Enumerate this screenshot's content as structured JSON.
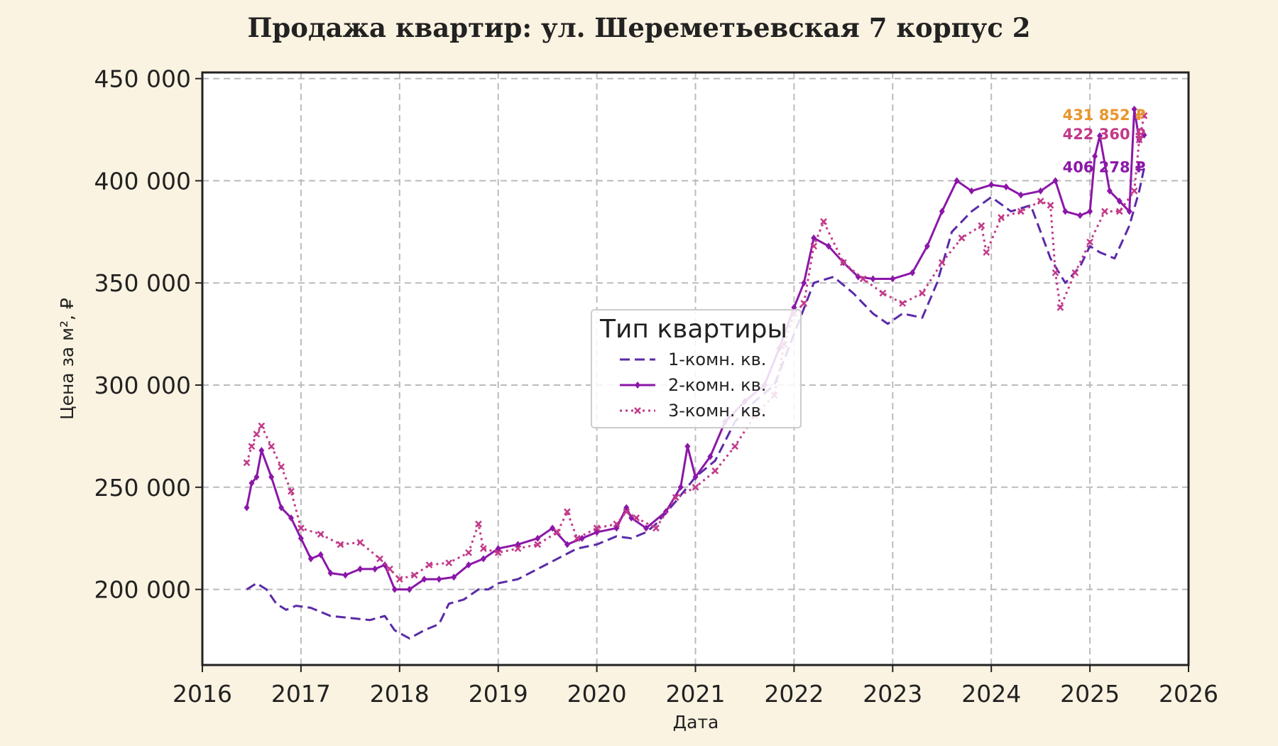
{
  "chart_data": {
    "type": "line",
    "title": "Продажа квартир: ул. Шереметьевская 7 корпус 2",
    "xlabel": "Дата",
    "ylabel": "Цена за м², ₽",
    "xlim": [
      2016,
      2026
    ],
    "ylim": [
      163000,
      453000
    ],
    "x_ticks": [
      "2016",
      "2017",
      "2018",
      "2019",
      "2020",
      "2021",
      "2022",
      "2023",
      "2024",
      "2025",
      "2026"
    ],
    "y_ticks": [
      "200 000",
      "250 000",
      "300 000",
      "350 000",
      "400 000",
      "450 000"
    ],
    "grid": true,
    "legend": {
      "title": "Тип квартиры",
      "placement": "center"
    },
    "series": [
      {
        "name": "1-комн. кв.",
        "color": "#5b2aa8",
        "style": "dashed",
        "x": [
          2016.45,
          2016.55,
          2016.65,
          2016.75,
          2016.85,
          2016.95,
          2017.1,
          2017.3,
          2017.5,
          2017.7,
          2017.85,
          2017.95,
          2018.1,
          2018.25,
          2018.4,
          2018.5,
          2018.65,
          2018.8,
          2018.9,
          2019.0,
          2019.2,
          2019.4,
          2019.6,
          2019.8,
          2020.0,
          2020.2,
          2020.35,
          2020.5,
          2020.6,
          2020.8,
          2021.0,
          2021.2,
          2021.4,
          2021.6,
          2021.8,
          2022.0,
          2022.2,
          2022.4,
          2022.6,
          2022.8,
          2022.95,
          2023.1,
          2023.3,
          2023.45,
          2023.6,
          2023.8,
          2024.0,
          2024.2,
          2024.4,
          2024.6,
          2024.75,
          2024.9,
          2025.0,
          2025.1,
          2025.25,
          2025.4,
          2025.5,
          2025.55
        ],
        "y": [
          200000,
          203000,
          200000,
          193000,
          190000,
          192000,
          191000,
          187000,
          186000,
          185000,
          187000,
          180000,
          176000,
          180000,
          183000,
          193000,
          195000,
          200000,
          200000,
          203000,
          205000,
          210000,
          215000,
          220000,
          222000,
          226000,
          225000,
          228000,
          232000,
          243000,
          255000,
          263000,
          282000,
          292000,
          300000,
          325000,
          350000,
          353000,
          345000,
          335000,
          330000,
          335000,
          333000,
          350000,
          375000,
          385000,
          392000,
          385000,
          388000,
          362000,
          350000,
          358000,
          368000,
          365000,
          362000,
          378000,
          395000,
          406278
        ]
      },
      {
        "name": "2-комн. кв.",
        "color": "#8b17a8",
        "style": "solid",
        "marker": "diamond",
        "x": [
          2016.45,
          2016.5,
          2016.55,
          2016.6,
          2016.7,
          2016.8,
          2016.9,
          2017.0,
          2017.1,
          2017.2,
          2017.3,
          2017.45,
          2017.6,
          2017.75,
          2017.85,
          2017.95,
          2018.1,
          2018.25,
          2018.4,
          2018.55,
          2018.7,
          2018.85,
          2019.0,
          2019.2,
          2019.4,
          2019.55,
          2019.7,
          2019.85,
          2020.0,
          2020.2,
          2020.3,
          2020.35,
          2020.5,
          2020.7,
          2020.85,
          2020.92,
          2021.0,
          2021.15,
          2021.3,
          2021.5,
          2021.7,
          2021.85,
          2022.0,
          2022.1,
          2022.2,
          2022.35,
          2022.5,
          2022.65,
          2022.8,
          2023.0,
          2023.2,
          2023.35,
          2023.5,
          2023.65,
          2023.8,
          2024.0,
          2024.15,
          2024.3,
          2024.5,
          2024.65,
          2024.75,
          2024.9,
          2025.0,
          2025.05,
          2025.1,
          2025.2,
          2025.3,
          2025.4,
          2025.45,
          2025.5,
          2025.55
        ],
        "y": [
          240000,
          252000,
          255000,
          268000,
          255000,
          240000,
          235000,
          225000,
          215000,
          217000,
          208000,
          207000,
          210000,
          210000,
          212000,
          200000,
          200000,
          205000,
          205000,
          206000,
          212000,
          215000,
          220000,
          222000,
          225000,
          230000,
          222000,
          225000,
          228000,
          230000,
          240000,
          235000,
          230000,
          238000,
          250000,
          270000,
          255000,
          265000,
          282000,
          292000,
          300000,
          318000,
          338000,
          350000,
          372000,
          368000,
          360000,
          353000,
          352000,
          352000,
          355000,
          368000,
          385000,
          400000,
          395000,
          398000,
          397000,
          393000,
          395000,
          400000,
          385000,
          383000,
          385000,
          412000,
          422000,
          395000,
          390000,
          385000,
          435000,
          420000,
          422360
        ]
      },
      {
        "name": "3-комн. кв.",
        "color": "#c23a8a",
        "style": "dotted",
        "marker": "x",
        "x": [
          2016.45,
          2016.5,
          2016.55,
          2016.6,
          2016.7,
          2016.8,
          2016.9,
          2017.0,
          2017.2,
          2017.4,
          2017.6,
          2017.8,
          2017.9,
          2018.0,
          2018.15,
          2018.3,
          2018.5,
          2018.7,
          2018.8,
          2018.85,
          2019.0,
          2019.2,
          2019.4,
          2019.6,
          2019.7,
          2019.8,
          2020.0,
          2020.2,
          2020.3,
          2020.4,
          2020.6,
          2020.8,
          2021.0,
          2021.2,
          2021.4,
          2021.6,
          2021.8,
          2021.9,
          2022.0,
          2022.1,
          2022.2,
          2022.3,
          2022.5,
          2022.7,
          2022.9,
          2023.1,
          2023.3,
          2023.5,
          2023.7,
          2023.9,
          2023.95,
          2024.1,
          2024.3,
          2024.5,
          2024.6,
          2024.65,
          2024.7,
          2024.85,
          2025.0,
          2025.15,
          2025.3,
          2025.45,
          2025.5,
          2025.55
        ],
        "y": [
          262000,
          270000,
          276000,
          280000,
          270000,
          260000,
          248000,
          230000,
          227000,
          222000,
          223000,
          215000,
          210000,
          205000,
          207000,
          212000,
          213000,
          218000,
          232000,
          220000,
          218000,
          220000,
          222000,
          228000,
          238000,
          225000,
          230000,
          232000,
          238000,
          235000,
          230000,
          245000,
          250000,
          258000,
          270000,
          285000,
          295000,
          320000,
          335000,
          340000,
          368000,
          380000,
          360000,
          352000,
          345000,
          340000,
          345000,
          360000,
          372000,
          378000,
          365000,
          382000,
          385000,
          390000,
          388000,
          355000,
          338000,
          355000,
          370000,
          385000,
          385000,
          395000,
          420000,
          431852
        ]
      }
    ],
    "annotations": [
      {
        "text": "431 852 ₽",
        "x": 2025.55,
        "y": 431852,
        "color": "#e8962c"
      },
      {
        "text": "422 360 ₽",
        "x": 2025.55,
        "y": 422360,
        "color": "#c23a8a"
      },
      {
        "text": "406 278 ₽",
        "x": 2025.55,
        "y": 406278,
        "color": "#8b17a8"
      }
    ]
  }
}
